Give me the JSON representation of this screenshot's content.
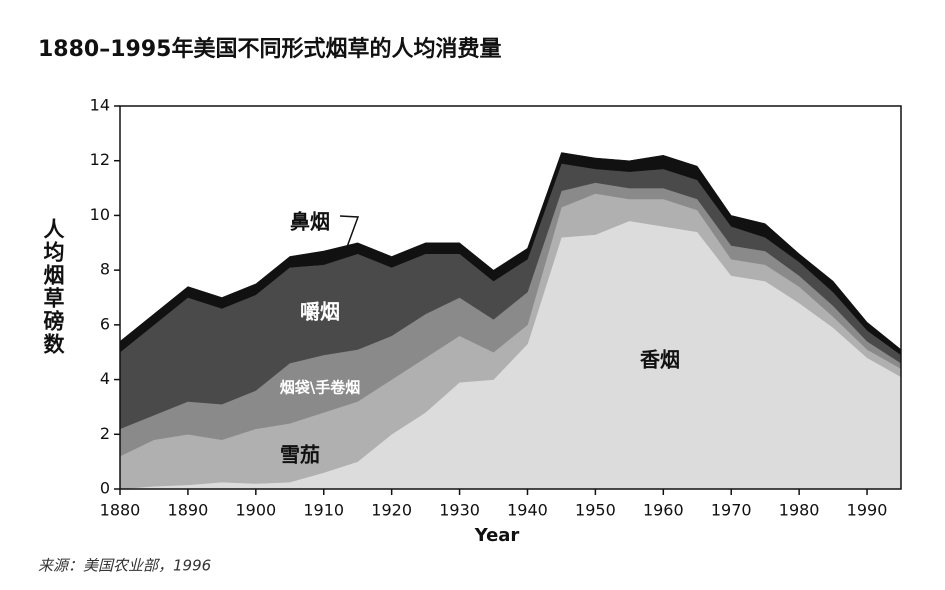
{
  "chart_data": {
    "type": "stacked-area",
    "title": "1880–1995年美国不同形式烟草的人均消费量",
    "y_label": "人均烟草磅数",
    "x_label": "Year",
    "source": "来源：美国农业部，1996",
    "x": [
      1880,
      1885,
      1890,
      1895,
      1900,
      1905,
      1910,
      1915,
      1920,
      1925,
      1930,
      1935,
      1940,
      1945,
      1950,
      1955,
      1960,
      1965,
      1970,
      1975,
      1980,
      1985,
      1990,
      1995
    ],
    "xlim": [
      1880,
      1995
    ],
    "xticks": [
      1880,
      1890,
      1900,
      1910,
      1920,
      1930,
      1940,
      1950,
      1960,
      1970,
      1980,
      1990
    ],
    "ylim": [
      0,
      14
    ],
    "yticks": [
      0,
      2,
      4,
      6,
      8,
      10,
      12,
      14
    ],
    "series": [
      {
        "name": "香烟",
        "color": "#dcdcdc",
        "values": [
          0,
          0.1,
          0.15,
          0.25,
          0.2,
          0.25,
          0.6,
          1.0,
          2.0,
          2.8,
          3.9,
          4.0,
          5.3,
          9.2,
          9.3,
          9.8,
          9.6,
          9.4,
          7.8,
          7.6,
          6.8,
          5.9,
          4.8,
          4.1
        ]
      },
      {
        "name": "雪茄",
        "color": "#b0b0b0",
        "values": [
          1.2,
          1.7,
          1.85,
          1.55,
          2.0,
          2.15,
          2.2,
          2.2,
          2.0,
          2.0,
          1.7,
          1.0,
          0.7,
          1.1,
          1.5,
          0.8,
          1.0,
          0.8,
          0.6,
          0.6,
          0.6,
          0.4,
          0.3,
          0.3
        ]
      },
      {
        "name": "烟袋\\手卷烟",
        "color": "#8a8a8a",
        "values": [
          1.0,
          0.9,
          1.2,
          1.3,
          1.4,
          2.2,
          2.1,
          1.9,
          1.6,
          1.6,
          1.4,
          1.2,
          1.2,
          0.6,
          0.4,
          0.4,
          0.4,
          0.4,
          0.5,
          0.5,
          0.4,
          0.4,
          0.3,
          0.2
        ]
      },
      {
        "name": "嚼烟",
        "color": "#4a4a4a",
        "values": [
          2.8,
          3.3,
          3.8,
          3.5,
          3.5,
          3.5,
          3.3,
          3.5,
          2.5,
          2.2,
          1.6,
          1.4,
          1.2,
          1.0,
          0.5,
          0.6,
          0.7,
          0.7,
          0.7,
          0.5,
          0.5,
          0.5,
          0.4,
          0.3
        ]
      },
      {
        "name": "鼻烟",
        "color": "#111111",
        "values": [
          0.4,
          0.4,
          0.4,
          0.4,
          0.4,
          0.4,
          0.5,
          0.4,
          0.4,
          0.4,
          0.4,
          0.4,
          0.4,
          0.4,
          0.4,
          0.4,
          0.5,
          0.5,
          0.4,
          0.5,
          0.3,
          0.4,
          0.3,
          0.2
        ]
      }
    ]
  }
}
